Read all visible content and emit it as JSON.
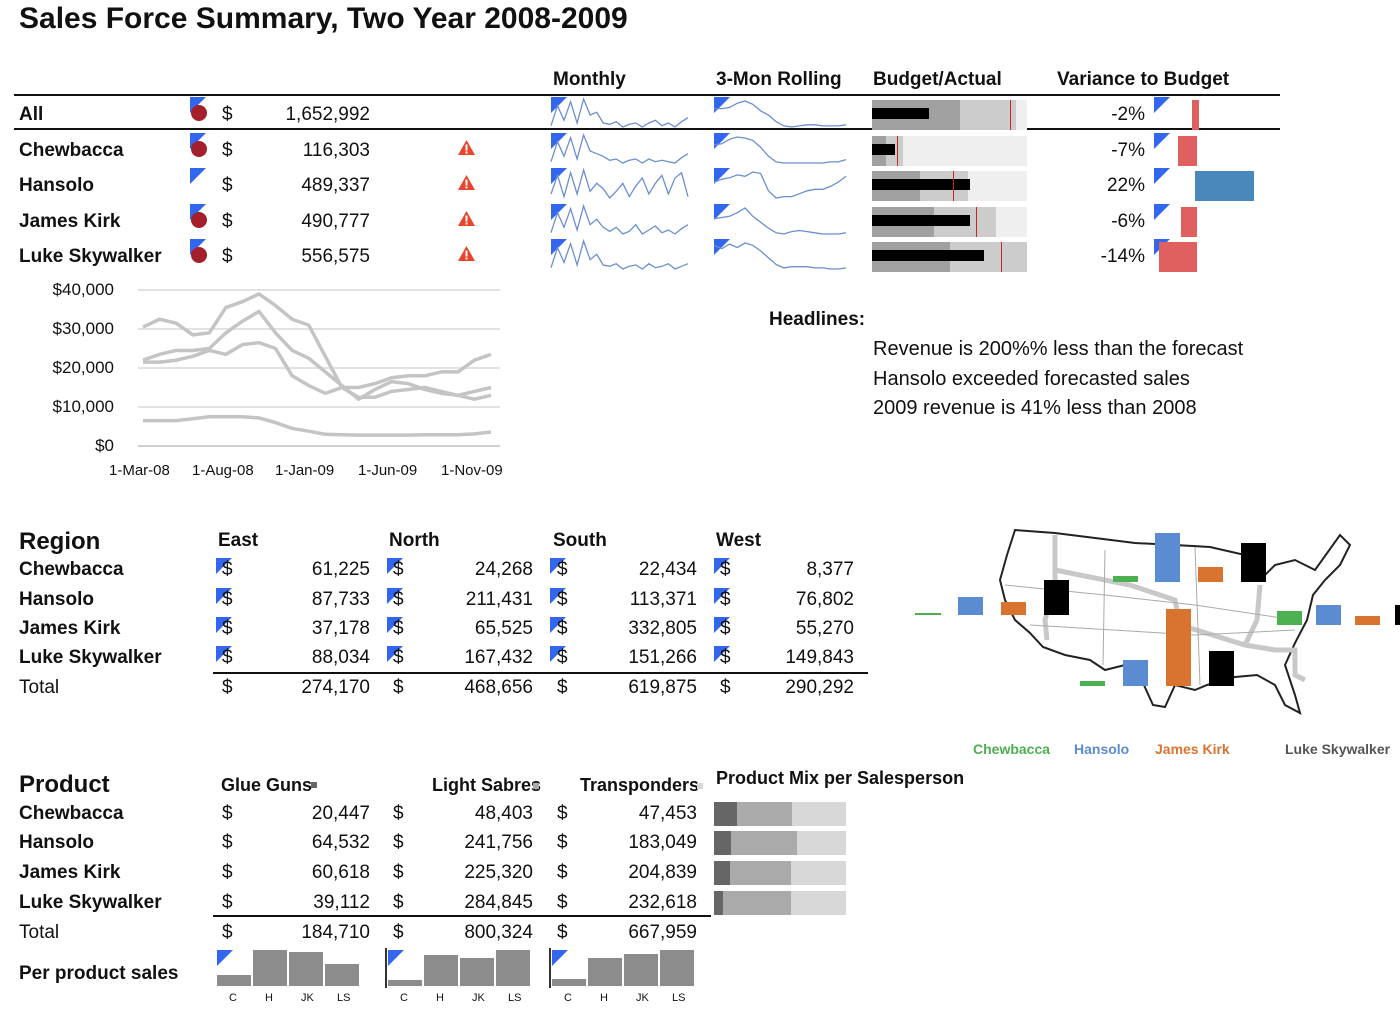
{
  "title": "Sales Force Summary, Two Year 2008-2009",
  "summary": {
    "headers": [
      "Monthly",
      "3-Mon Rolling",
      "Budget/Actual",
      "Variance to Budget"
    ],
    "rows": [
      {
        "name": "All",
        "currency": "$",
        "value": "1,652,992",
        "status_dot": true,
        "warning": false,
        "variance": "-2%",
        "variance_pct": -2,
        "budget": {
          "band1": 0.57,
          "band2": 0.93,
          "actual": 0.37,
          "target": 0.89
        },
        "monthly": [
          20,
          35,
          24,
          38,
          22,
          40,
          28,
          30,
          22,
          21,
          23,
          19,
          21,
          22,
          19,
          22,
          24,
          20,
          22,
          19,
          23,
          26
        ],
        "rolling": [
          30,
          30,
          31,
          35,
          37,
          34,
          28,
          24,
          18,
          14,
          13,
          14,
          15,
          15,
          14,
          14,
          14,
          15
        ]
      },
      {
        "name": "Chewbacca",
        "currency": "$",
        "value": "116,303",
        "status_dot": true,
        "warning": true,
        "variance": "-7%",
        "variance_pct": -7,
        "budget": {
          "band1": 0.09,
          "band2": 0.2,
          "actual": 0.15,
          "target": 0.16
        },
        "monthly": [
          20,
          35,
          24,
          38,
          22,
          40,
          28,
          26,
          24,
          21,
          22,
          19,
          21,
          22,
          19,
          22,
          20,
          21,
          20,
          19,
          23,
          26
        ],
        "rolling": [
          30,
          31,
          35,
          37,
          36,
          34,
          28,
          20,
          15,
          14,
          14,
          14,
          14,
          14,
          14,
          15,
          15,
          17
        ]
      },
      {
        "name": "Hansolo",
        "currency": "$",
        "value": "489,337",
        "status_dot": false,
        "warning": true,
        "variance": "22%",
        "variance_pct": 22,
        "budget": {
          "band1": 0.31,
          "band2": 0.62,
          "actual": 0.63,
          "target": 0.52
        },
        "monthly": [
          22,
          36,
          20,
          38,
          22,
          40,
          24,
          30,
          26,
          19,
          24,
          30,
          20,
          28,
          34,
          22,
          30,
          36,
          22,
          34,
          38,
          20
        ],
        "rolling": [
          28,
          30,
          31,
          33,
          32,
          35,
          34,
          22,
          17,
          18,
          18,
          20,
          22,
          23,
          23,
          25,
          28,
          32
        ]
      },
      {
        "name": "James Kirk",
        "currency": "$",
        "value": "490,777",
        "status_dot": true,
        "warning": true,
        "variance": "-6%",
        "variance_pct": -6,
        "budget": {
          "band1": 0.4,
          "band2": 0.8,
          "actual": 0.63,
          "target": 0.67
        },
        "monthly": [
          20,
          35,
          24,
          38,
          22,
          40,
          26,
          30,
          24,
          21,
          24,
          19,
          21,
          26,
          19,
          22,
          25,
          20,
          22,
          19,
          23,
          26
        ],
        "rolling": [
          28,
          29,
          30,
          33,
          37,
          30,
          25,
          20,
          16,
          15,
          17,
          18,
          17,
          16,
          15,
          15,
          15,
          16
        ]
      },
      {
        "name": "Luke Skywalker",
        "currency": "$",
        "value": "556,575",
        "status_dot": true,
        "warning": true,
        "variance": "-14%",
        "variance_pct": -14,
        "budget": {
          "band1": 0.5,
          "band2": 1.0,
          "actual": 0.72,
          "target": 0.83
        },
        "monthly": [
          20,
          35,
          24,
          38,
          22,
          40,
          26,
          30,
          22,
          21,
          23,
          19,
          21,
          22,
          19,
          23,
          20,
          21,
          23,
          19,
          21,
          23
        ],
        "rolling": [
          35,
          32,
          36,
          33,
          37,
          35,
          30,
          24,
          18,
          15,
          16,
          16,
          16,
          15,
          15,
          14,
          14,
          15
        ]
      }
    ]
  },
  "colors": {
    "Chewbacca": "#4caf50",
    "Hansolo": "#5b8bd0",
    "James Kirk": "#d87330",
    "Luke Skywalker": "#000000",
    "negative": "#e06060",
    "positive": "#4a88bb",
    "target": "#cc2222"
  },
  "chart_data": [
    {
      "type": "line",
      "yticks": [
        "$40,000",
        "$30,000",
        "$20,000",
        "$10,000",
        "$0"
      ],
      "ylim": [
        0,
        40000
      ],
      "xticks": [
        "1-Mar-08",
        "1-Aug-08",
        "1-Jan-09",
        "1-Jun-09",
        "1-Nov-09"
      ],
      "x": [
        "Mar-08",
        "Apr-08",
        "May-08",
        "Jun-08",
        "Jul-08",
        "Aug-08",
        "Sep-08",
        "Oct-08",
        "Nov-08",
        "Dec-08",
        "Jan-09",
        "Feb-09",
        "Mar-09",
        "Apr-09",
        "May-09",
        "Jun-09",
        "Jul-09",
        "Aug-09",
        "Sep-09",
        "Oct-09",
        "Nov-09",
        "Dec-09"
      ],
      "grid": true,
      "series": [
        {
          "values": [
            30500,
            32500,
            31500,
            28500,
            29000,
            35500,
            37000,
            39000,
            36000,
            32500,
            31000,
            23000,
            15000,
            12500,
            12500,
            14000,
            14500,
            15000,
            14000,
            13000,
            12000,
            13000
          ]
        },
        {
          "values": [
            22000,
            23500,
            24500,
            24500,
            25000,
            29000,
            32000,
            34500,
            29000,
            24500,
            22500,
            19000,
            15500,
            12000,
            14500,
            16500,
            16000,
            14500,
            13500,
            13000,
            14000,
            15000
          ]
        },
        {
          "values": [
            21500,
            21500,
            22000,
            23000,
            24500,
            23500,
            26000,
            26500,
            25000,
            18000,
            15500,
            13500,
            15000,
            15000,
            16000,
            17500,
            18000,
            18000,
            19000,
            19000,
            22000,
            23500
          ]
        },
        {
          "values": [
            6500,
            6500,
            6500,
            7000,
            7500,
            7500,
            7500,
            7200,
            6000,
            4500,
            3800,
            3000,
            2900,
            2800,
            2800,
            2800,
            2800,
            2900,
            2900,
            2900,
            3100,
            3600
          ]
        }
      ]
    },
    {
      "type": "bar",
      "title": "Product Mix per Salesperson",
      "stacked": true,
      "categories": [
        "Chewbacca",
        "Hansolo",
        "James Kirk",
        "Luke Skywalker"
      ],
      "series": [
        {
          "name": "Glue Guns",
          "values": [
            20447,
            64532,
            60618,
            39112
          ]
        },
        {
          "name": "Light Sabres",
          "values": [
            48403,
            241756,
            225320,
            284845
          ]
        },
        {
          "name": "Transponders",
          "values": [
            47453,
            183049,
            204839,
            232618
          ]
        }
      ]
    },
    {
      "type": "bar",
      "title": "Per product sales",
      "categories": [
        "C",
        "H",
        "JK",
        "LS"
      ]
    }
  ],
  "headlines": {
    "label": "Headlines:",
    "items": [
      "Revenue is 200%% less than the forecast",
      "Hansolo exceeded forecasted sales",
      "2009 revenue is 41% less than 2008"
    ]
  },
  "region": {
    "title": "Region",
    "columns": [
      "East",
      "North",
      "South",
      "West"
    ],
    "currency": "$",
    "rows": [
      {
        "name": "Chewbacca",
        "values": [
          "61,225",
          "24,268",
          "22,434",
          "8,377"
        ]
      },
      {
        "name": "Hansolo",
        "values": [
          "87,733",
          "211,431",
          "113,371",
          "76,802"
        ]
      },
      {
        "name": "James Kirk",
        "values": [
          "37,178",
          "65,525",
          "332,805",
          "55,270"
        ]
      },
      {
        "name": "Luke Skywalker",
        "values": [
          "88,034",
          "167,432",
          "151,266",
          "149,843"
        ]
      }
    ],
    "total": {
      "name": "Total",
      "values": [
        "274,170",
        "468,656",
        "619,875",
        "290,292"
      ]
    },
    "map_legend": [
      "Chewbacca",
      "Hansolo",
      "James Kirk",
      "Luke Skywalker"
    ]
  },
  "product": {
    "title": "Product",
    "columns": [
      "Glue Guns",
      "Light Sabres",
      "Transponders"
    ],
    "column_colors": [
      "#666666",
      "#aaaaaa",
      "#d8d8d8"
    ],
    "currency": "$",
    "rows": [
      {
        "name": "Chewbacca",
        "values": [
          "20,447",
          "48,403",
          "47,453"
        ]
      },
      {
        "name": "Hansolo",
        "values": [
          "64,532",
          "241,756",
          "183,049"
        ]
      },
      {
        "name": "James Kirk",
        "values": [
          "60,618",
          "225,320",
          "204,839"
        ]
      },
      {
        "name": "Luke Skywalker",
        "values": [
          "39,112",
          "284,845",
          "232,618"
        ]
      }
    ],
    "total": {
      "name": "Total",
      "values": [
        "184,710",
        "800,324",
        "667,959"
      ]
    },
    "mix_title": "Product Mix per Salesperson",
    "per_product_label": "Per product sales",
    "mini_labels": [
      "C",
      "H",
      "JK",
      "LS"
    ]
  }
}
